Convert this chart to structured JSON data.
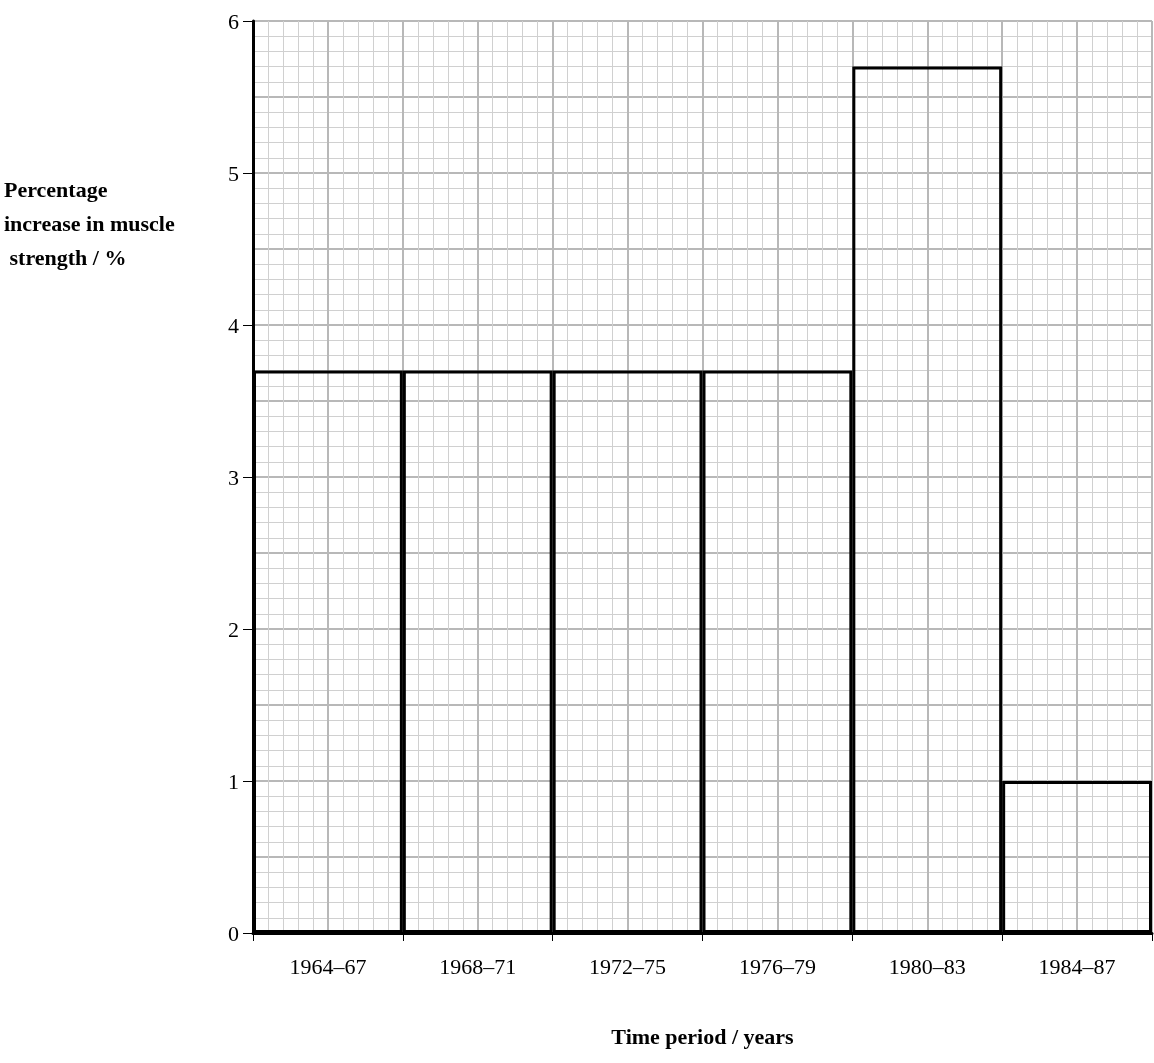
{
  "chart_data": {
    "type": "bar",
    "xlabel": "Time period / years",
    "ylabel": "Percentage increase in muscle strength / %",
    "categories": [
      "1964–67",
      "1968–71",
      "1972–75",
      "1976–79",
      "1980–83",
      "1984–87"
    ],
    "values": [
      3.7,
      3.7,
      3.7,
      3.7,
      5.7,
      1.0
    ],
    "color": "#000000",
    "ylim": [
      0,
      6
    ],
    "yticks": [
      0,
      1,
      2,
      3,
      4,
      5,
      6
    ],
    "grid": true
  }
}
